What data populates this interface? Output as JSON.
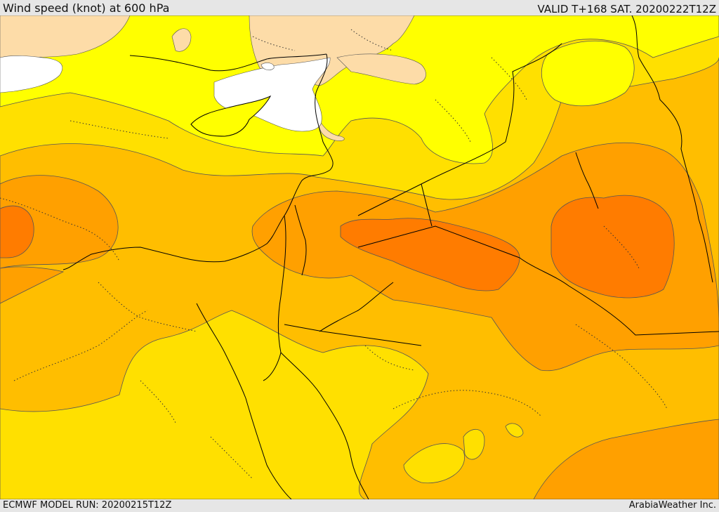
{
  "header": {
    "title": "Wind speed (knot) at 600 hPa",
    "valid": "VALID T+168 SAT. 20200222T12Z"
  },
  "footer": {
    "model_run": "ECMWF MODEL RUN: 20200215T12Z",
    "credit": "ArabiaWeather Inc."
  },
  "map": {
    "field": "wind speed",
    "level": "600 hPa",
    "colors": {
      "land_beige": "#fddca8",
      "sea_white": "#ffffff",
      "yellow": "#ffff00",
      "gold": "#ffe000",
      "light_orange": "#ffbe00",
      "orange": "#ffa000",
      "dark_orange": "#ff7c00",
      "contour": "#555555",
      "border": "#000000"
    }
  }
}
